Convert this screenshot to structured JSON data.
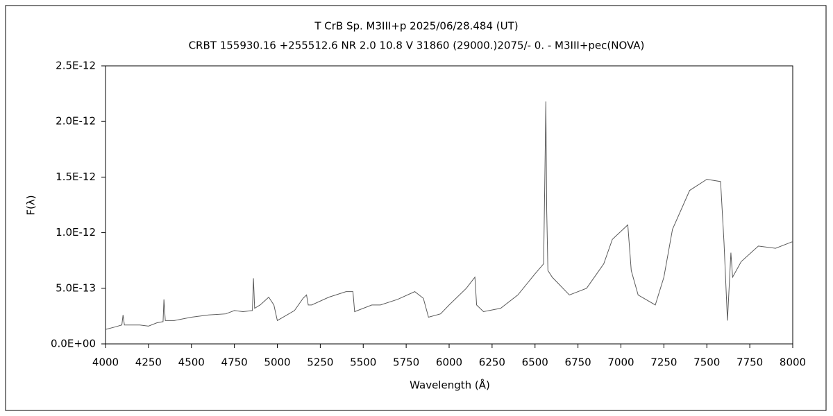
{
  "chart_data": {
    "type": "line",
    "title": "T CrB    Sp. M3III+p    2025/06/28.484 (UT)",
    "subtitle": "CRBT 155930.16 +255512.6 NR 2.0 10.8 V 31860 (29000.)2075/-  0. - M3III+pec(NOVA)",
    "x_label": "Wavelength (Å)",
    "y_label": "F(λ)",
    "color": "#5a5a5a",
    "x": [
      4000,
      4050,
      4095,
      4102,
      4110,
      4200,
      4250,
      4300,
      4335,
      4340,
      4348,
      4400,
      4500,
      4600,
      4700,
      4750,
      4800,
      4855,
      4861,
      4868,
      4900,
      4950,
      4980,
      5000,
      5100,
      5150,
      5170,
      5180,
      5200,
      5300,
      5400,
      5440,
      5450,
      5550,
      5600,
      5700,
      5800,
      5850,
      5880,
      5950,
      6000,
      6100,
      6150,
      6160,
      6200,
      6300,
      6400,
      6500,
      6550,
      6558,
      6563,
      6568,
      6575,
      6600,
      6700,
      6800,
      6900,
      6950,
      7040,
      7060,
      7100,
      7200,
      7250,
      7300,
      7400,
      7500,
      7580,
      7600,
      7620,
      7640,
      7650,
      7700,
      7800,
      7900,
      8000
    ],
    "values": [
      1.3e-13,
      1.5e-13,
      1.7e-13,
      2.6e-13,
      1.7e-13,
      1.7e-13,
      1.6e-13,
      1.9e-13,
      2e-13,
      4e-13,
      2.1e-13,
      2.1e-13,
      2.4e-13,
      2.6e-13,
      2.7e-13,
      3e-13,
      2.9e-13,
      3e-13,
      5.9e-13,
      3.2e-13,
      3.5e-13,
      4.2e-13,
      3.5e-13,
      2.1e-13,
      3e-13,
      4.1e-13,
      4.4e-13,
      3.5e-13,
      3.5e-13,
      4.2e-13,
      4.7e-13,
      4.7e-13,
      2.9e-13,
      3.5e-13,
      3.5e-13,
      4e-13,
      4.7e-13,
      4.1e-13,
      2.4e-13,
      2.7e-13,
      3.5e-13,
      5e-13,
      6e-13,
      3.5e-13,
      2.9e-13,
      3.2e-13,
      4.4e-13,
      6.3e-13,
      7.2e-13,
      1.6e-12,
      2.18e-12,
      1.2e-12,
      6.6e-13,
      6e-13,
      4.4e-13,
      5e-13,
      7.2e-13,
      9.4e-13,
      1.07e-12,
      6.6e-13,
      4.4e-13,
      3.5e-13,
      6e-13,
      1.03e-12,
      1.38e-12,
      1.48e-12,
      1.46e-12,
      9.1e-13,
      2.1e-13,
      8.2e-13,
      6e-13,
      7.4e-13,
      8.8e-13,
      8.6e-13,
      9.2e-13
    ],
    "xlim": [
      4000,
      8000
    ],
    "xticks": [
      4000,
      4250,
      4500,
      4750,
      5000,
      5250,
      5500,
      5750,
      6000,
      6250,
      6500,
      6750,
      7000,
      7250,
      7500,
      7750,
      8000
    ],
    "ylim": [
      0,
      2.5e-12
    ],
    "yticks": [
      {
        "value": 0,
        "label": "0.0E+00"
      },
      {
        "value": 5e-13,
        "label": "5.0E-13"
      },
      {
        "value": 1e-12,
        "label": "1.0E-12"
      },
      {
        "value": 1.5e-12,
        "label": "1.5E-12"
      },
      {
        "value": 2e-12,
        "label": "2.0E-12"
      },
      {
        "value": 2.5e-12,
        "label": "2.5E-12"
      }
    ]
  }
}
